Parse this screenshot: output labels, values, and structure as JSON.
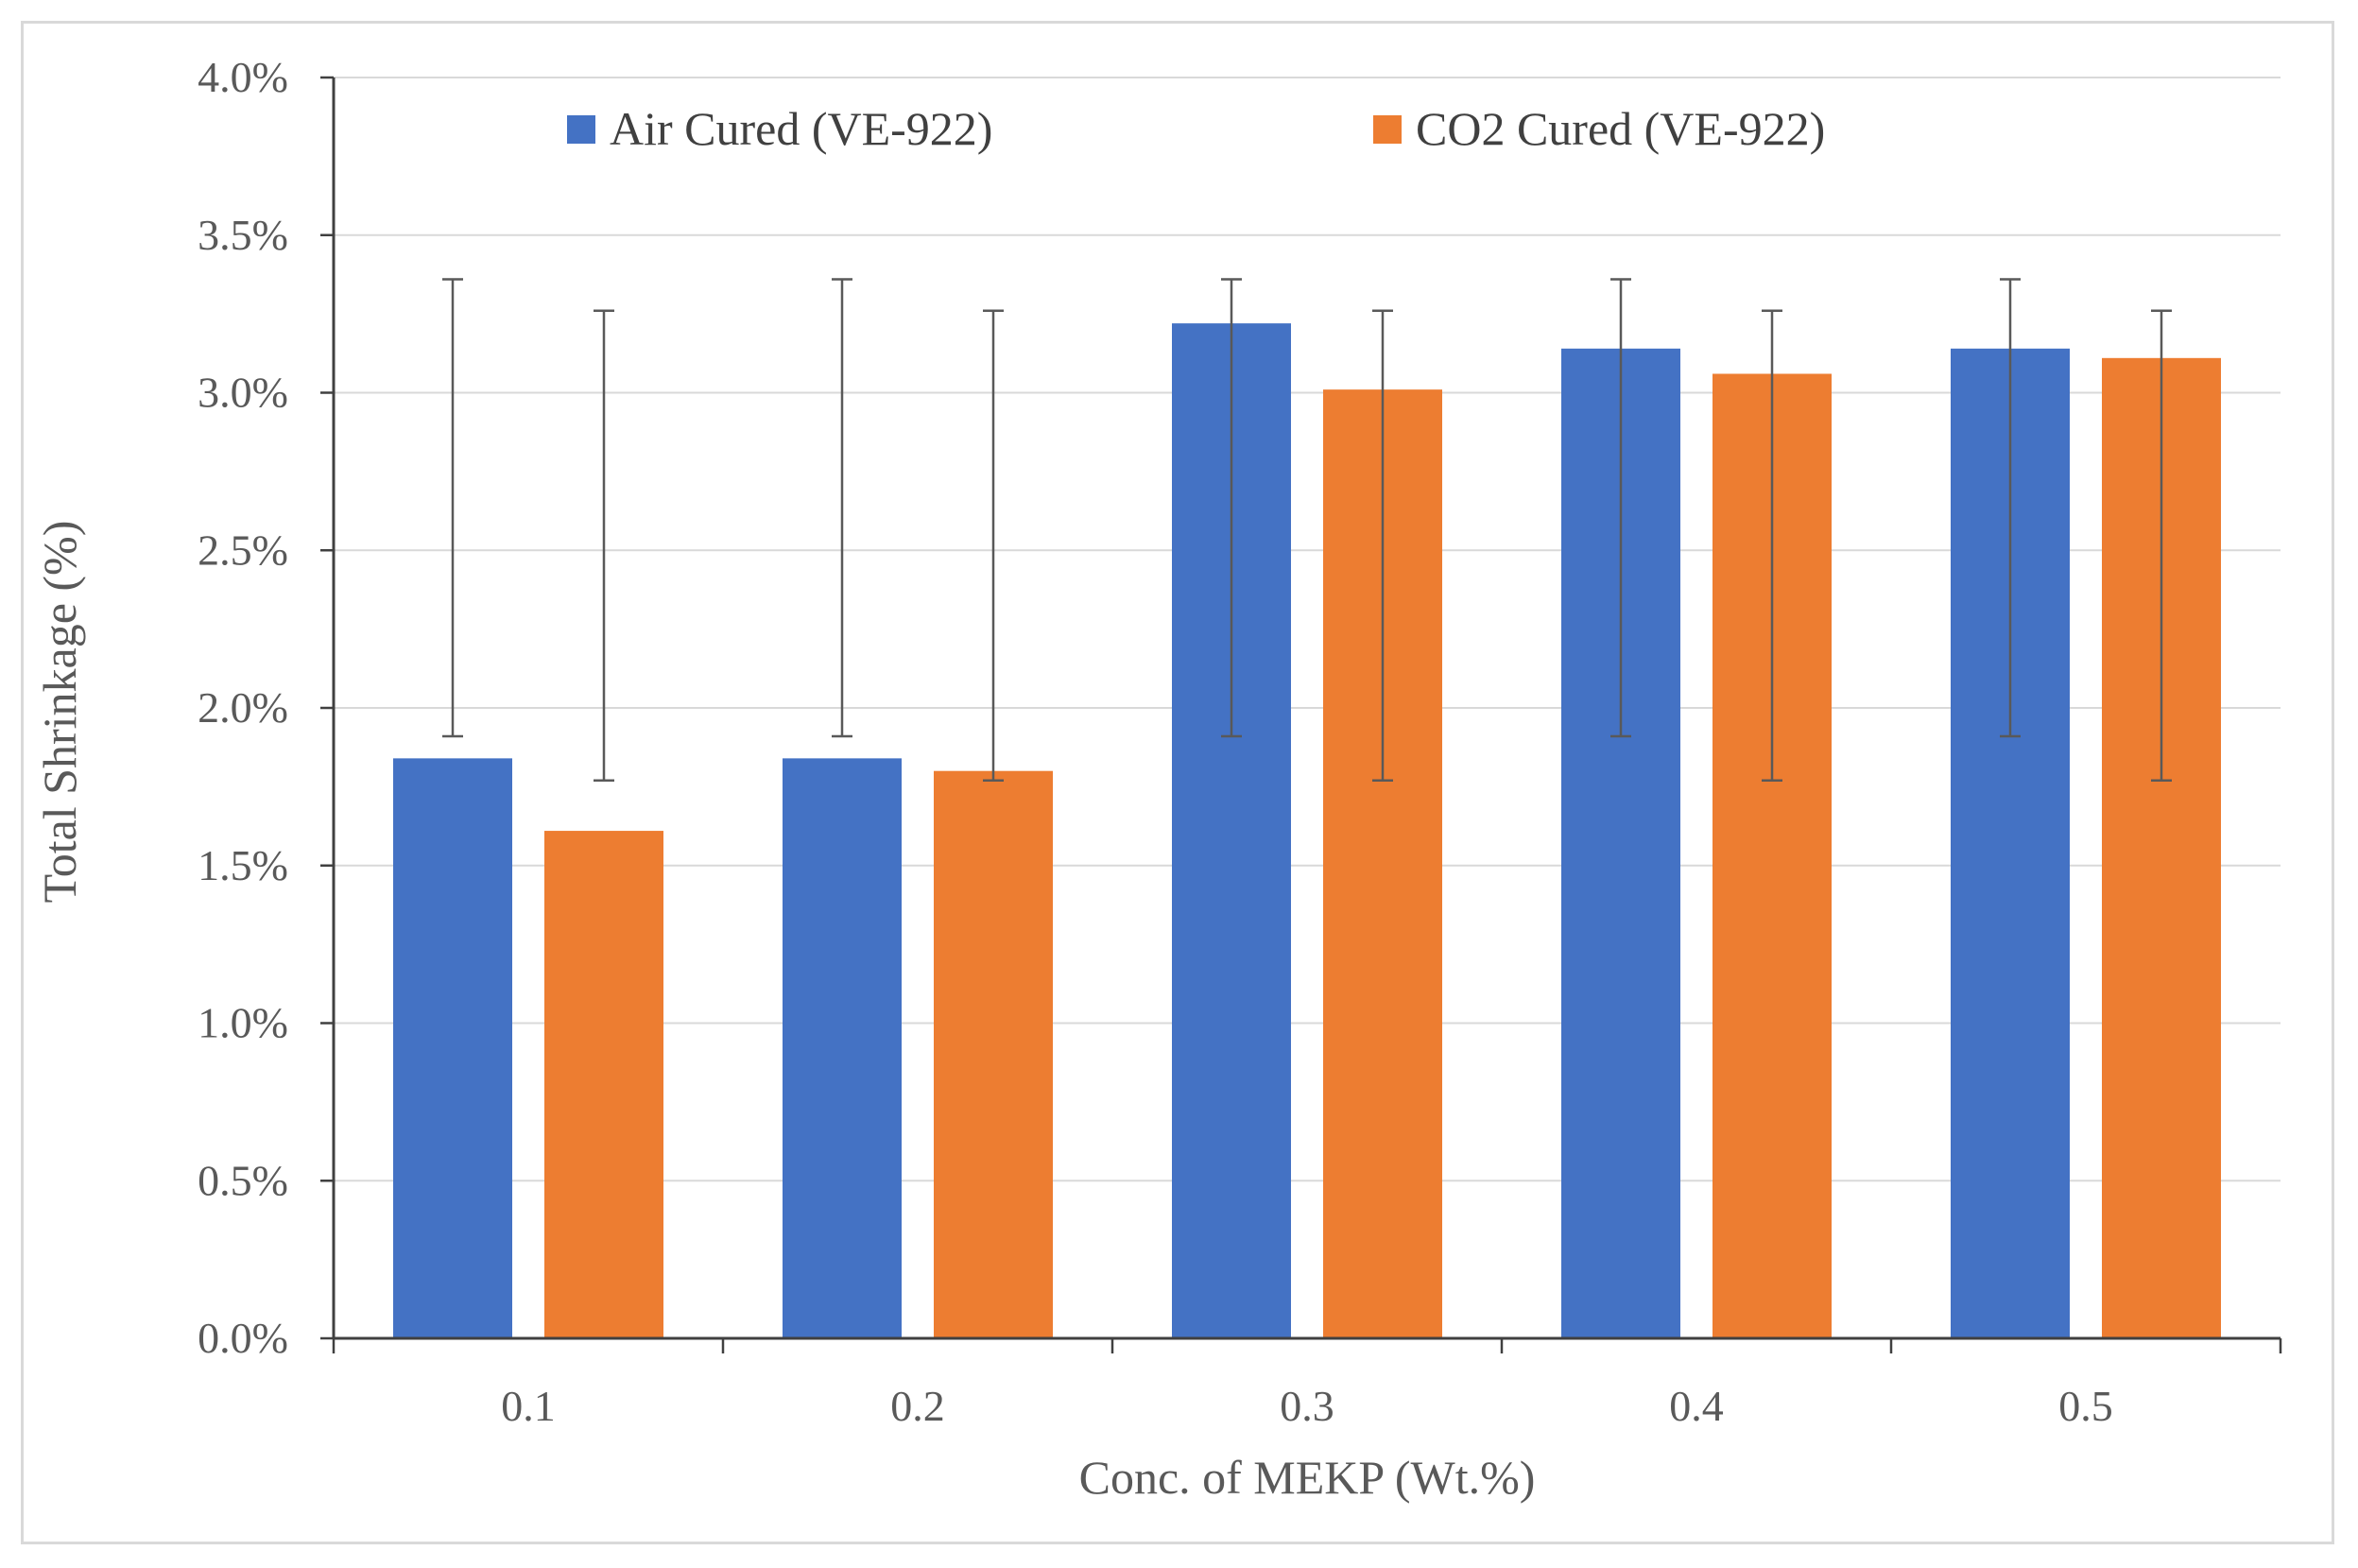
{
  "chart_data": {
    "type": "bar",
    "title": "",
    "xlabel": "Conc. of MEKP (Wt.%)",
    "ylabel": "Total Shrinkage (%)",
    "categories": [
      "0.1",
      "0.2",
      "0.3",
      "0.4",
      "0.5"
    ],
    "ylim": [
      0,
      0.04
    ],
    "yticks": [
      0,
      0.005,
      0.01,
      0.015,
      0.02,
      0.025,
      0.03,
      0.035,
      0.04
    ],
    "ytick_labels": [
      "0.0%",
      "0.5%",
      "1.0%",
      "1.5%",
      "2.0%",
      "2.5%",
      "3.0%",
      "3.5%",
      "4.0%"
    ],
    "grid": true,
    "legend_position": "top",
    "series": [
      {
        "name": "Air Cured (VE-922)",
        "color": "#4472c4",
        "values": [
          0.0184,
          0.0184,
          0.0322,
          0.0314,
          0.0314
        ],
        "error_low": [
          0.0191,
          0.0191,
          0.0191,
          0.0191,
          0.0191
        ],
        "error_high": [
          0.0336,
          0.0336,
          0.0336,
          0.0336,
          0.0336
        ]
      },
      {
        "name": "CO2 Cured (VE-922)",
        "color": "#ed7d31",
        "values": [
          0.0161,
          0.018,
          0.0301,
          0.0306,
          0.0311
        ],
        "error_low": [
          0.0177,
          0.0177,
          0.0177,
          0.0177,
          0.0177
        ],
        "error_high": [
          0.0326,
          0.0326,
          0.0326,
          0.0326,
          0.0326
        ]
      }
    ],
    "colors": {
      "gridline": "#d9d9d9",
      "axis": "#404040",
      "errorbar": "#595959",
      "text": "#595959"
    }
  }
}
